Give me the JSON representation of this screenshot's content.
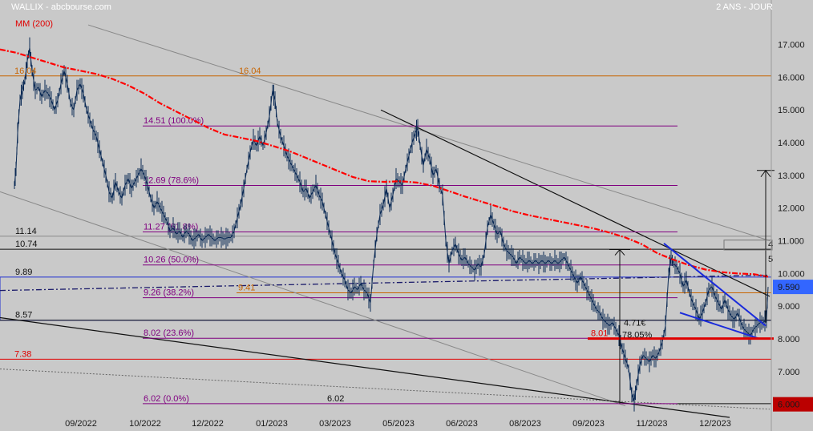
{
  "header": {
    "title": "WALLIX - abcbourse.com",
    "period": "2 ANS - JOUR",
    "ma_legend": "MM (200)"
  },
  "chart_data": {
    "type": "candlestick",
    "ylim": [
      5.6,
      17.7
    ],
    "y_ticks": [
      "17.000",
      "16.000",
      "15.000",
      "14.000",
      "13.000",
      "12.000",
      "11.000",
      "10.000",
      "9.000",
      "8.000",
      "7.000",
      "6.000"
    ],
    "x_ticks": [
      "09/2022",
      "10/2022",
      "12/2022",
      "01/2023",
      "03/2023",
      "05/2023",
      "06/2023",
      "08/2023",
      "09/2023",
      "11/2023",
      "12/2023"
    ],
    "last_price_label": "9.590",
    "last_price": 9.59,
    "low_marker_label": "6.000",
    "low_marker": 6.0,
    "colors": {
      "price": "#0b2a55",
      "ma200": "#ff0000",
      "fib": "#800080",
      "support_orange": "#c86400",
      "blue_channel": "#1a2bdb",
      "price_badge": "#3366ff",
      "low_badge": "#bb0000"
    },
    "fib_levels": [
      {
        "label": "14.51  (100.0%)",
        "value": 14.51
      },
      {
        "label": "12.69  (78.6%)",
        "value": 12.69
      },
      {
        "label": "11.27  (61.8%)",
        "value": 11.27
      },
      {
        "label": "10.26  (50.0%)",
        "value": 10.26
      },
      {
        "label": "9.26  (38.2%)",
        "value": 9.26
      },
      {
        "label": "8.02  (23.6%)",
        "value": 8.02
      },
      {
        "label": "6.02  (0.0%)",
        "value": 6.02
      }
    ],
    "annotations": {
      "resistance_1604_left": "16.04",
      "resistance_1604_right": "16.04",
      "level_1114": "11.14",
      "level_1074": "10.74",
      "level_989": "9.89",
      "level_857": "8.57",
      "level_738": "7.38",
      "level_941": "9.41",
      "level_801": "8.01",
      "level_602": "6.02",
      "gain_eur": "4.71€",
      "gain_pct": "78.05%",
      "side_4": "4",
      "side_5": "5"
    },
    "ma200": [
      [
        0,
        16.85
      ],
      [
        20,
        16.75
      ],
      [
        40,
        16.6
      ],
      [
        60,
        16.45
      ],
      [
        80,
        16.3
      ],
      [
        100,
        16.2
      ],
      [
        120,
        16.1
      ],
      [
        140,
        15.95
      ],
      [
        160,
        15.75
      ],
      [
        180,
        15.5
      ],
      [
        200,
        15.2
      ],
      [
        220,
        14.95
      ],
      [
        240,
        14.7
      ],
      [
        260,
        14.45
      ],
      [
        280,
        14.25
      ],
      [
        300,
        14.15
      ],
      [
        320,
        14.05
      ],
      [
        340,
        13.9
      ],
      [
        360,
        13.75
      ],
      [
        380,
        13.55
      ],
      [
        400,
        13.35
      ],
      [
        420,
        13.15
      ],
      [
        440,
        12.95
      ],
      [
        460,
        12.82
      ],
      [
        480,
        12.8
      ],
      [
        500,
        12.82
      ],
      [
        520,
        12.78
      ],
      [
        540,
        12.68
      ],
      [
        560,
        12.52
      ],
      [
        580,
        12.35
      ],
      [
        600,
        12.2
      ],
      [
        620,
        12.05
      ],
      [
        640,
        11.9
      ],
      [
        660,
        11.78
      ],
      [
        680,
        11.68
      ],
      [
        700,
        11.58
      ],
      [
        720,
        11.48
      ],
      [
        740,
        11.38
      ],
      [
        760,
        11.25
      ],
      [
        780,
        11.1
      ],
      [
        800,
        10.9
      ],
      [
        820,
        10.62
      ],
      [
        840,
        10.42
      ],
      [
        860,
        10.25
      ],
      [
        880,
        10.12
      ],
      [
        900,
        10.04
      ],
      [
        920,
        10.0
      ],
      [
        940,
        9.98
      ],
      [
        958,
        9.9
      ]
    ],
    "price_path": [
      [
        18,
        12.7
      ],
      [
        20,
        13.2
      ],
      [
        22,
        14.3
      ],
      [
        25,
        15.3
      ],
      [
        28,
        15.6
      ],
      [
        31,
        15.9
      ],
      [
        34,
        16.5
      ],
      [
        37,
        16.9
      ],
      [
        40,
        16.2
      ],
      [
        44,
        15.6
      ],
      [
        48,
        15.7
      ],
      [
        52,
        15.4
      ],
      [
        56,
        15.6
      ],
      [
        60,
        15.5
      ],
      [
        64,
        15.3
      ],
      [
        68,
        15.0
      ],
      [
        72,
        15.3
      ],
      [
        76,
        15.8
      ],
      [
        80,
        16.2
      ],
      [
        84,
        15.8
      ],
      [
        88,
        15.2
      ],
      [
        92,
        15.0
      ],
      [
        96,
        15.6
      ],
      [
        100,
        15.8
      ],
      [
        104,
        15.5
      ],
      [
        108,
        15.0
      ],
      [
        112,
        14.7
      ],
      [
        116,
        14.4
      ],
      [
        120,
        14.2
      ],
      [
        124,
        13.8
      ],
      [
        128,
        13.4
      ],
      [
        132,
        13.0
      ],
      [
        136,
        12.5
      ],
      [
        140,
        12.3
      ],
      [
        144,
        12.8
      ],
      [
        148,
        12.5
      ],
      [
        152,
        12.3
      ],
      [
        156,
        12.7
      ],
      [
        160,
        12.9
      ],
      [
        164,
        12.6
      ],
      [
        168,
        12.8
      ],
      [
        172,
        13.0
      ],
      [
        176,
        13.2
      ],
      [
        180,
        13.0
      ],
      [
        184,
        12.7
      ],
      [
        188,
        12.3
      ],
      [
        192,
        12.0
      ],
      [
        196,
        12.2
      ],
      [
        200,
        12.0
      ],
      [
        204,
        11.8
      ],
      [
        208,
        11.6
      ],
      [
        212,
        11.3
      ],
      [
        216,
        11.4
      ],
      [
        220,
        11.2
      ],
      [
        224,
        11.3
      ],
      [
        228,
        11.1
      ],
      [
        232,
        11.3
      ],
      [
        236,
        11.2
      ],
      [
        240,
        11.0
      ],
      [
        244,
        11.1
      ],
      [
        248,
        11.2
      ],
      [
        252,
        11.0
      ],
      [
        256,
        11.1
      ],
      [
        260,
        11.2
      ],
      [
        264,
        11.1
      ],
      [
        268,
        11.0
      ],
      [
        272,
        11.1
      ],
      [
        276,
        11.1
      ],
      [
        280,
        11.05
      ],
      [
        284,
        11.1
      ],
      [
        288,
        11.1
      ],
      [
        292,
        11.3
      ],
      [
        296,
        11.7
      ],
      [
        300,
        12.1
      ],
      [
        304,
        12.6
      ],
      [
        308,
        13.2
      ],
      [
        312,
        13.7
      ],
      [
        316,
        14.1
      ],
      [
        320,
        13.9
      ],
      [
        324,
        14.2
      ],
      [
        328,
        13.9
      ],
      [
        332,
        14.3
      ],
      [
        336,
        14.8
      ],
      [
        340,
        15.6
      ],
      [
        343,
        15.3
      ],
      [
        346,
        14.6
      ],
      [
        350,
        14.2
      ],
      [
        354,
        13.9
      ],
      [
        358,
        13.6
      ],
      [
        362,
        13.4
      ],
      [
        366,
        13.2
      ],
      [
        370,
        13.0
      ],
      [
        374,
        12.8
      ],
      [
        378,
        12.5
      ],
      [
        382,
        12.6
      ],
      [
        386,
        12.3
      ],
      [
        390,
        12.5
      ],
      [
        394,
        12.7
      ],
      [
        398,
        12.4
      ],
      [
        402,
        12.2
      ],
      [
        406,
        11.8
      ],
      [
        410,
        11.4
      ],
      [
        414,
        11.0
      ],
      [
        418,
        10.6
      ],
      [
        422,
        10.3
      ],
      [
        426,
        10.0
      ],
      [
        430,
        9.8
      ],
      [
        434,
        9.5
      ],
      [
        438,
        9.4
      ],
      [
        442,
        9.6
      ],
      [
        446,
        9.5
      ],
      [
        450,
        9.7
      ],
      [
        454,
        9.5
      ],
      [
        458,
        9.4
      ],
      [
        462,
        9.1
      ],
      [
        466,
        10.3
      ],
      [
        470,
        11.2
      ],
      [
        474,
        11.8
      ],
      [
        478,
        12.1
      ],
      [
        482,
        12.6
      ],
      [
        486,
        12.0
      ],
      [
        490,
        12.4
      ],
      [
        494,
        12.9
      ],
      [
        498,
        12.8
      ],
      [
        502,
        12.7
      ],
      [
        506,
        13.2
      ],
      [
        510,
        13.6
      ],
      [
        514,
        14.0
      ],
      [
        518,
        14.3
      ],
      [
        521,
        14.45
      ],
      [
        524,
        13.9
      ],
      [
        528,
        13.3
      ],
      [
        532,
        13.8
      ],
      [
        536,
        13.5
      ],
      [
        540,
        13.0
      ],
      [
        544,
        13.2
      ],
      [
        548,
        12.7
      ],
      [
        552,
        12.4
      ],
      [
        556,
        11.0
      ],
      [
        560,
        10.3
      ],
      [
        564,
        10.7
      ],
      [
        568,
        10.9
      ],
      [
        572,
        10.6
      ],
      [
        576,
        10.4
      ],
      [
        580,
        10.5
      ],
      [
        584,
        10.3
      ],
      [
        588,
        10.2
      ],
      [
        592,
        10.1
      ],
      [
        596,
        10.3
      ],
      [
        600,
        10.2
      ],
      [
        604,
        10.6
      ],
      [
        608,
        11.4
      ],
      [
        612,
        11.8
      ],
      [
        616,
        11.5
      ],
      [
        620,
        11.2
      ],
      [
        624,
        11.3
      ],
      [
        628,
        10.9
      ],
      [
        632,
        10.7
      ],
      [
        636,
        10.6
      ],
      [
        640,
        10.5
      ],
      [
        644,
        10.3
      ],
      [
        648,
        10.5
      ],
      [
        652,
        10.4
      ],
      [
        656,
        10.3
      ],
      [
        660,
        10.4
      ],
      [
        664,
        10.3
      ],
      [
        668,
        10.4
      ],
      [
        672,
        10.3
      ],
      [
        676,
        10.4
      ],
      [
        680,
        10.3
      ],
      [
        684,
        10.4
      ],
      [
        688,
        10.3
      ],
      [
        692,
        10.4
      ],
      [
        696,
        10.3
      ],
      [
        700,
        10.4
      ],
      [
        704,
        10.5
      ],
      [
        708,
        10.3
      ],
      [
        712,
        10.1
      ],
      [
        716,
        9.9
      ],
      [
        720,
        9.7
      ],
      [
        724,
        9.9
      ],
      [
        728,
        9.7
      ],
      [
        732,
        9.5
      ],
      [
        736,
        9.3
      ],
      [
        740,
        9.1
      ],
      [
        744,
        8.9
      ],
      [
        748,
        8.8
      ],
      [
        752,
        8.6
      ],
      [
        756,
        8.5
      ],
      [
        760,
        8.4
      ],
      [
        764,
        8.5
      ],
      [
        768,
        8.3
      ],
      [
        772,
        8.1
      ],
      [
        776,
        7.7
      ],
      [
        780,
        7.4
      ],
      [
        784,
        7.1
      ],
      [
        788,
        6.3
      ],
      [
        791,
        6.1
      ],
      [
        794,
        6.6
      ],
      [
        798,
        7.2
      ],
      [
        802,
        7.5
      ],
      [
        806,
        7.4
      ],
      [
        810,
        7.3
      ],
      [
        814,
        7.5
      ],
      [
        818,
        7.4
      ],
      [
        822,
        7.6
      ],
      [
        826,
        7.9
      ],
      [
        830,
        8.4
      ],
      [
        834,
        10.0
      ],
      [
        837,
        10.5
      ],
      [
        840,
        10.3
      ],
      [
        844,
        10.2
      ],
      [
        848,
        10.0
      ],
      [
        852,
        9.6
      ],
      [
        856,
        9.8
      ],
      [
        860,
        9.4
      ],
      [
        864,
        9.1
      ],
      [
        868,
        8.9
      ],
      [
        872,
        8.6
      ],
      [
        876,
        8.8
      ],
      [
        880,
        9.1
      ],
      [
        884,
        9.5
      ],
      [
        888,
        9.6
      ],
      [
        892,
        9.3
      ],
      [
        896,
        9.1
      ],
      [
        900,
        8.9
      ],
      [
        904,
        9.2
      ],
      [
        908,
        8.9
      ],
      [
        912,
        8.7
      ],
      [
        916,
        8.6
      ],
      [
        920,
        8.8
      ],
      [
        924,
        8.5
      ],
      [
        928,
        8.3
      ],
      [
        932,
        8.2
      ],
      [
        936,
        8.1
      ],
      [
        940,
        8.3
      ],
      [
        944,
        8.4
      ],
      [
        948,
        8.5
      ],
      [
        952,
        8.5
      ],
      [
        956,
        8.6
      ],
      [
        958,
        9.59
      ]
    ]
  }
}
